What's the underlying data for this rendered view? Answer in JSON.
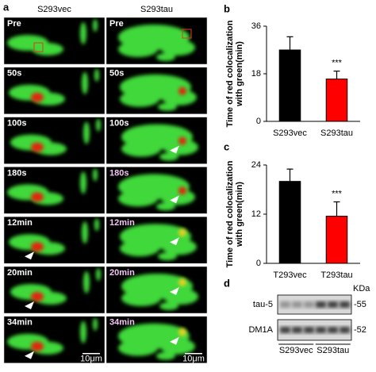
{
  "panel_a": {
    "label": "a",
    "columns": [
      "S293vec",
      "S293tau"
    ],
    "rows": [
      [
        "Pre",
        "Pre"
      ],
      [
        "50s",
        "50s"
      ],
      [
        "100s",
        "100s"
      ],
      [
        "180s",
        "180s"
      ],
      [
        "12min",
        "12min"
      ],
      [
        "20min",
        "20min"
      ],
      [
        "34min",
        "34min"
      ]
    ],
    "scale_bars": [
      "10μm",
      "10μm"
    ]
  },
  "chart_data": [
    {
      "panel_label": "b",
      "type": "bar",
      "y_label": [
        "Time of red colocalization",
        "with green(min)"
      ],
      "categories": [
        "S293vec",
        "S293tau"
      ],
      "values": [
        27,
        16
      ],
      "errors": [
        5,
        3
      ],
      "colors": [
        "#000000",
        "#ff0000"
      ],
      "annotation": "***",
      "ylim": [
        0,
        36
      ],
      "yticks": [
        0,
        18,
        36
      ]
    },
    {
      "panel_label": "c",
      "type": "bar",
      "y_label": [
        "Time of red colocalization",
        "with green(min)"
      ],
      "categories": [
        "T293vec",
        "T293tau"
      ],
      "values": [
        20,
        11.5
      ],
      "errors": [
        3,
        3.5
      ],
      "colors": [
        "#000000",
        "#ff0000"
      ],
      "annotation": "***",
      "ylim": [
        0,
        24
      ],
      "yticks": [
        0,
        12,
        24
      ]
    }
  ],
  "panel_d": {
    "label": "d",
    "unit": "KDa",
    "bands": [
      {
        "name": "tau-5",
        "size": "-55"
      },
      {
        "name": "DM1A",
        "size": "-52"
      }
    ],
    "lanes": [
      "S293vec",
      "S293tau"
    ]
  }
}
